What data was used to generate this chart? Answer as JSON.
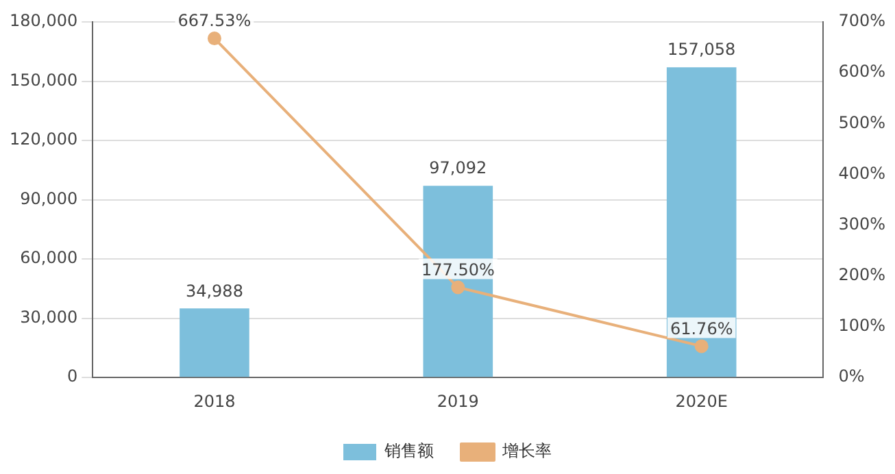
{
  "chart_data": {
    "type": "bar",
    "categories": [
      "2018",
      "2019",
      "2020E"
    ],
    "series": [
      {
        "name": "销售额",
        "color": "#7dbfdc",
        "values": [
          34988,
          97092,
          157058
        ],
        "value_labels": [
          "34,988",
          "97,092",
          "157,058"
        ]
      },
      {
        "name": "增长率",
        "type": "line",
        "axis": "y2",
        "color": "#e8b07a",
        "marker": "circle",
        "values": [
          667.53,
          177.5,
          61.76
        ],
        "value_labels": [
          "667.53%",
          "177.50%",
          "61.76%"
        ]
      }
    ],
    "ylim": [
      0,
      180000
    ],
    "yticks": [
      {
        "value": 0,
        "label": "0"
      },
      {
        "value": 30000,
        "label": "30,000"
      },
      {
        "value": 60000,
        "label": "60,000"
      },
      {
        "value": 90000,
        "label": "90,000"
      },
      {
        "value": 120000,
        "label": "120,000"
      },
      {
        "value": 150000,
        "label": "150,000"
      },
      {
        "value": 180000,
        "label": "180,000"
      }
    ],
    "y2lim": [
      0,
      700
    ],
    "y2ticks": [
      {
        "value": 0,
        "label": "0%"
      },
      {
        "value": 100,
        "label": "100%"
      },
      {
        "value": 200,
        "label": "200%"
      },
      {
        "value": 300,
        "label": "300%"
      },
      {
        "value": 400,
        "label": "400%"
      },
      {
        "value": 500,
        "label": "500%"
      },
      {
        "value": 600,
        "label": "600%"
      },
      {
        "value": 700,
        "label": "700%"
      }
    ],
    "grid": "y",
    "legend": "bottom"
  }
}
